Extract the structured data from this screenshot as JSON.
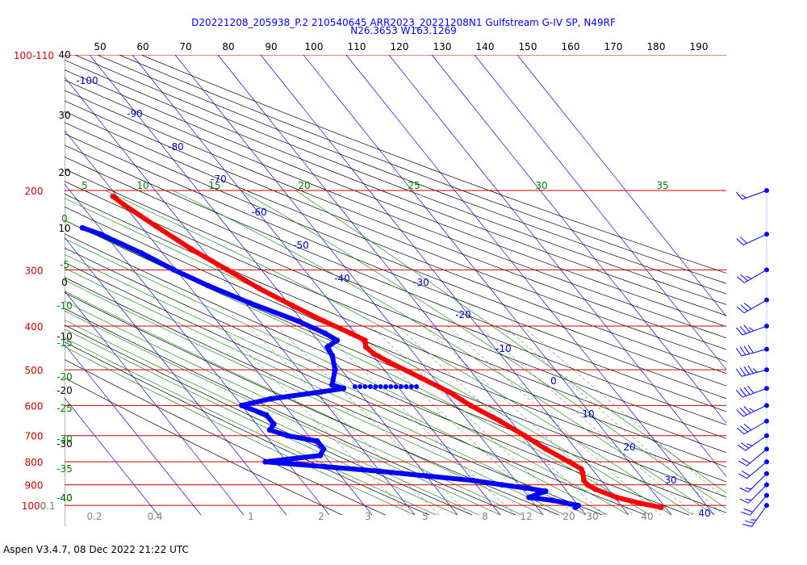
{
  "header": {
    "line1": "D20221208_205938_P.2 210540645 ARR2023_20221208N1 Gulfstream G-IV SP, N49RF",
    "line2": "N26.3653 W163.1269"
  },
  "footer": {
    "text": "Aspen V3.4.7, 08 Dec 2022  21:22 UTC"
  },
  "colors": {
    "isobar": "#cc0000",
    "isotherm": "#0000cc",
    "dry_adiabat": "#000000",
    "moist_adiabat": "#008000",
    "mixing_ratio": "#808080",
    "temperature_trace": "#ff0000",
    "dewpoint_trace": "#0000ff",
    "barbs": "#0000ff"
  },
  "chart_data": {
    "type": "skew-t",
    "pressure_levels": [
      {
        "p": 100,
        "label": "100-110"
      },
      {
        "p": 200,
        "label": "200"
      },
      {
        "p": 300,
        "label": "300"
      },
      {
        "p": 400,
        "label": "400"
      },
      {
        "p": 500,
        "label": "500"
      },
      {
        "p": 600,
        "label": "600"
      },
      {
        "p": 700,
        "label": "700"
      },
      {
        "p": 800,
        "label": "800"
      },
      {
        "p": 900,
        "label": "900"
      },
      {
        "p": 1000,
        "label": "1000"
      }
    ],
    "isotherm_labels": [
      "-100",
      "-90",
      "-80",
      "-70",
      "-60",
      "-50",
      "-40",
      "-30",
      "-20",
      "-10",
      "0",
      "10",
      "20",
      "30",
      "40"
    ],
    "isotherm_values": [
      -100,
      -90,
      -80,
      -70,
      -60,
      -50,
      -40,
      -30,
      -20,
      -10,
      0,
      10,
      20,
      30,
      40
    ],
    "dry_adiabat_labels": [
      "50",
      "60",
      "70",
      "80",
      "90",
      "100",
      "110",
      "120",
      "130",
      "140",
      "150",
      "160",
      "170",
      "180",
      "190"
    ],
    "theta_left_labels": [
      "40",
      "30",
      "20",
      "10",
      "0",
      "-10",
      "-20",
      "-30",
      "-40"
    ],
    "theta_e_labels": [
      "5",
      "10",
      "15",
      "20",
      "25",
      "30",
      "35"
    ],
    "moist_left_labels": [
      "0",
      "-5",
      "-10",
      "-15",
      "-20",
      "-25",
      "-30",
      "-35",
      "-40"
    ],
    "mixing_ratio_labels": [
      "0.1",
      "0.2",
      "0.4",
      "1",
      "2",
      "3",
      "5",
      "8",
      "12",
      "20",
      "30",
      "40"
    ],
    "temperature": [
      {
        "p": 206,
        "t": -51
      },
      {
        "p": 215,
        "t": -50
      },
      {
        "p": 240,
        "t": -46.5
      },
      {
        "p": 270,
        "t": -42.5
      },
      {
        "p": 300,
        "t": -38
      },
      {
        "p": 330,
        "t": -34
      },
      {
        "p": 360,
        "t": -29.5
      },
      {
        "p": 390,
        "t": -25
      },
      {
        "p": 415,
        "t": -21
      },
      {
        "p": 430,
        "t": -19
      },
      {
        "p": 445,
        "t": -20
      },
      {
        "p": 460,
        "t": -19.5
      },
      {
        "p": 480,
        "t": -17.5
      },
      {
        "p": 520,
        "t": -13
      },
      {
        "p": 560,
        "t": -9
      },
      {
        "p": 600,
        "t": -6.5
      },
      {
        "p": 650,
        "t": -2.5
      },
      {
        "p": 700,
        "t": 0.5
      },
      {
        "p": 750,
        "t": 3
      },
      {
        "p": 800,
        "t": 6
      },
      {
        "p": 830,
        "t": 7.5
      },
      {
        "p": 850,
        "t": 7
      },
      {
        "p": 880,
        "t": 6
      },
      {
        "p": 900,
        "t": 6
      },
      {
        "p": 920,
        "t": 7
      },
      {
        "p": 960,
        "t": 10.5
      },
      {
        "p": 990,
        "t": 15
      },
      {
        "p": 1010,
        "t": 19
      }
    ],
    "dewpoint": [
      {
        "p": 242,
        "t": -64
      },
      {
        "p": 250,
        "t": -61
      },
      {
        "p": 275,
        "t": -55
      },
      {
        "p": 300,
        "t": -50.5
      },
      {
        "p": 325,
        "t": -45.5
      },
      {
        "p": 355,
        "t": -39
      },
      {
        "p": 390,
        "t": -31
      },
      {
        "p": 415,
        "t": -27
      },
      {
        "p": 430,
        "t": -25.5
      },
      {
        "p": 445,
        "t": -29
      },
      {
        "p": 465,
        "t": -29.5
      },
      {
        "p": 500,
        "t": -31.5
      },
      {
        "p": 540,
        "t": -35
      },
      {
        "p": 550,
        "t": -33
      },
      {
        "p": 560,
        "t": -39
      },
      {
        "p": 580,
        "t": -52
      },
      {
        "p": 600,
        "t": -60
      },
      {
        "p": 630,
        "t": -56
      },
      {
        "p": 660,
        "t": -56
      },
      {
        "p": 680,
        "t": -58
      },
      {
        "p": 700,
        "t": -55
      },
      {
        "p": 720,
        "t": -49
      },
      {
        "p": 750,
        "t": -49
      },
      {
        "p": 775,
        "t": -51
      },
      {
        "p": 800,
        "t": -65
      },
      {
        "p": 820,
        "t": -52
      },
      {
        "p": 840,
        "t": -40
      },
      {
        "p": 860,
        "t": -30
      },
      {
        "p": 880,
        "t": -20
      },
      {
        "p": 900,
        "t": -14
      },
      {
        "p": 915,
        "t": -9
      },
      {
        "p": 930,
        "t": -5
      },
      {
        "p": 960,
        "t": -10
      },
      {
        "p": 975,
        "t": -5
      },
      {
        "p": 1000,
        "t": 0
      },
      {
        "p": 1010,
        "t": -1
      }
    ],
    "moisture_gap": {
      "p": 545,
      "t_from": -30,
      "t_to": -15
    },
    "wind_barbs": [
      {
        "p": 200,
        "dir": 250,
        "spd": 15
      },
      {
        "p": 250,
        "dir": 245,
        "spd": 20
      },
      {
        "p": 300,
        "dir": 240,
        "spd": 25
      },
      {
        "p": 350,
        "dir": 240,
        "spd": 30
      },
      {
        "p": 400,
        "dir": 250,
        "spd": 35
      },
      {
        "p": 450,
        "dir": 255,
        "spd": 40
      },
      {
        "p": 500,
        "dir": 255,
        "spd": 45
      },
      {
        "p": 550,
        "dir": 250,
        "spd": 40
      },
      {
        "p": 600,
        "dir": 245,
        "spd": 35
      },
      {
        "p": 650,
        "dir": 240,
        "spd": 30
      },
      {
        "p": 700,
        "dir": 235,
        "spd": 25
      },
      {
        "p": 750,
        "dir": 230,
        "spd": 20
      },
      {
        "p": 800,
        "dir": 230,
        "spd": 20
      },
      {
        "p": 850,
        "dir": 225,
        "spd": 15
      },
      {
        "p": 900,
        "dir": 225,
        "spd": 15
      },
      {
        "p": 950,
        "dir": 220,
        "spd": 20
      },
      {
        "p": 1000,
        "dir": 215,
        "spd": 25
      }
    ]
  }
}
